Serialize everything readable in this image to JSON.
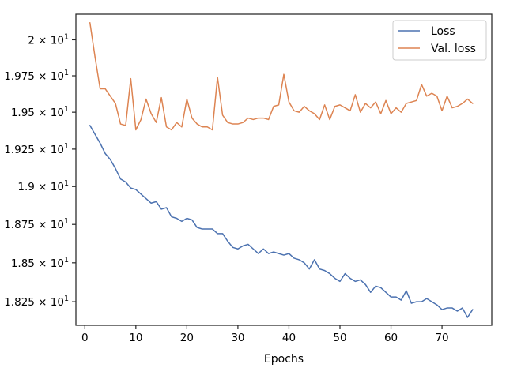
{
  "chart_data": {
    "type": "line",
    "title": "",
    "xlabel": "Epochs",
    "ylabel": "",
    "xlim": [
      -1.75,
      79.75
    ],
    "ylim": [
      18.1,
      20.18
    ],
    "yscale": "log",
    "grid": false,
    "legend_position": "top-right",
    "x_ticks": [
      0,
      10,
      20,
      30,
      40,
      50,
      60,
      70
    ],
    "x_tick_labels": [
      "0",
      "10",
      "20",
      "30",
      "40",
      "50",
      "60",
      "70"
    ],
    "y_ticks": [
      18.25,
      18.5,
      18.75,
      19.0,
      19.25,
      19.5,
      19.75,
      20.0
    ],
    "y_tick_labels": [
      "1.825 × 10",
      "1.85 × 10",
      "1.875 × 10",
      "1.9 × 10",
      "1.925 × 10",
      "1.95 × 10",
      "1.975 × 10",
      "2 × 10"
    ],
    "y_tick_exponent": "1",
    "x": [
      1,
      2,
      3,
      4,
      5,
      6,
      7,
      8,
      9,
      10,
      11,
      12,
      13,
      14,
      15,
      16,
      17,
      18,
      19,
      20,
      21,
      22,
      23,
      24,
      25,
      26,
      27,
      28,
      29,
      30,
      31,
      32,
      33,
      34,
      35,
      36,
      37,
      38,
      39,
      40,
      41,
      42,
      43,
      44,
      45,
      46,
      47,
      48,
      49,
      50,
      51,
      52,
      53,
      54,
      55,
      56,
      57,
      58,
      59,
      60,
      61,
      62,
      63,
      64,
      65,
      66,
      67,
      68,
      69,
      70,
      71,
      72,
      73,
      74,
      75,
      76
    ],
    "series": [
      {
        "name": "Loss",
        "color": "#4c72b0",
        "values": [
          19.41,
          19.35,
          19.29,
          19.22,
          19.18,
          19.12,
          19.05,
          19.03,
          18.99,
          18.98,
          18.95,
          18.92,
          18.89,
          18.9,
          18.85,
          18.86,
          18.8,
          18.79,
          18.77,
          18.79,
          18.78,
          18.73,
          18.72,
          18.72,
          18.72,
          18.69,
          18.69,
          18.64,
          18.6,
          18.59,
          18.61,
          18.62,
          18.59,
          18.56,
          18.59,
          18.56,
          18.57,
          18.56,
          18.55,
          18.56,
          18.53,
          18.52,
          18.5,
          18.46,
          18.52,
          18.46,
          18.45,
          18.43,
          18.4,
          18.38,
          18.43,
          18.4,
          18.38,
          18.39,
          18.36,
          18.31,
          18.35,
          18.34,
          18.31,
          18.28,
          18.28,
          18.26,
          18.32,
          18.24,
          18.25,
          18.25,
          18.27,
          18.25,
          18.23,
          18.2,
          18.21,
          18.21,
          18.19,
          18.21,
          18.15,
          18.2
        ]
      },
      {
        "name": "Val. loss",
        "color": "#dd8452",
        "values": [
          20.12,
          19.88,
          19.66,
          19.66,
          19.61,
          19.56,
          19.42,
          19.41,
          19.73,
          19.38,
          19.45,
          19.59,
          19.49,
          19.43,
          19.6,
          19.4,
          19.38,
          19.43,
          19.4,
          19.59,
          19.46,
          19.42,
          19.4,
          19.4,
          19.38,
          19.74,
          19.48,
          19.43,
          19.42,
          19.42,
          19.43,
          19.46,
          19.45,
          19.46,
          19.46,
          19.45,
          19.54,
          19.55,
          19.76,
          19.57,
          19.51,
          19.5,
          19.54,
          19.51,
          19.49,
          19.45,
          19.55,
          19.45,
          19.54,
          19.55,
          19.53,
          19.51,
          19.62,
          19.5,
          19.56,
          19.53,
          19.57,
          19.49,
          19.58,
          19.49,
          19.53,
          19.5,
          19.56,
          19.57,
          19.58,
          19.69,
          19.61,
          19.63,
          19.61,
          19.51,
          19.61,
          19.53,
          19.54,
          19.56,
          19.59,
          19.56
        ]
      }
    ]
  }
}
